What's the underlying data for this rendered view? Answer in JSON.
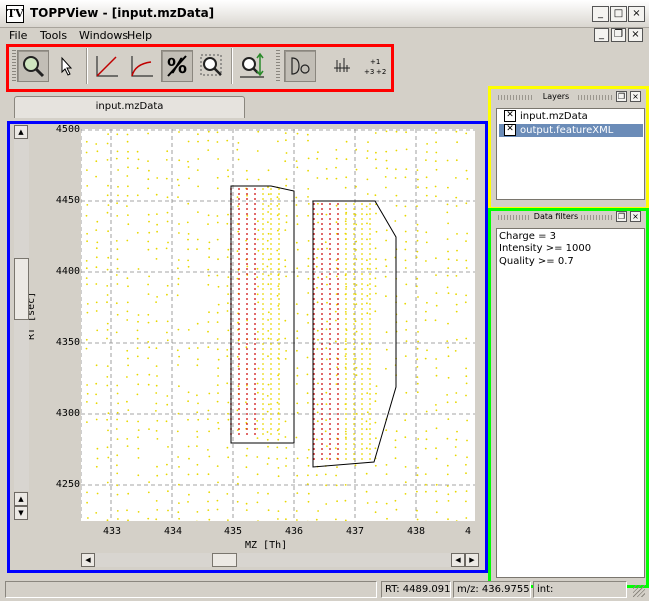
{
  "window": {
    "title": "TOPPView - [input.mzData]",
    "app_icon_glyph": "TV",
    "controls": [
      "_",
      "□",
      "×"
    ],
    "mdi_controls": [
      "_",
      "❐",
      "×"
    ]
  },
  "menu": [
    "File",
    "Tools",
    "Windows",
    "Help"
  ],
  "toolbar": {
    "tools": [
      {
        "icon": "zoom-mode-icon",
        "pressed": true
      },
      {
        "icon": "select-arrow-icon",
        "pressed": false
      },
      {
        "icon": "linear-intensity-icon",
        "pressed": false
      },
      {
        "icon": "log-intensity-icon",
        "pressed": false
      },
      {
        "icon": "percentage-intensity-icon",
        "pressed": true
      },
      {
        "icon": "reset-zoom-icon",
        "pressed": false
      },
      {
        "icon": "zoom-scale-icon",
        "pressed": false
      },
      {
        "icon": "projections-icon",
        "pressed": true
      },
      {
        "icon": "show-peaks-icon",
        "pressed": false
      },
      {
        "icon": "charge-states-icon",
        "pressed": false
      }
    ],
    "charge_labels": [
      "+1",
      "+3",
      "+2"
    ]
  },
  "tab": {
    "label": "input.mzData"
  },
  "plot": {
    "y_ticks": [
      "4500",
      "4450",
      "4400",
      "4350",
      "4300",
      "4250"
    ],
    "x_ticks": [
      "433",
      "434",
      "435",
      "436",
      "437",
      "438",
      "4"
    ],
    "xlabel": "MZ [Th]",
    "ylabel": "RT [sec]",
    "point_color": "#e8d800",
    "feature_color": "#cc0000"
  },
  "layers": {
    "title": "Layers",
    "items": [
      {
        "label": "input.mzData",
        "checked": true,
        "selected": false
      },
      {
        "label": "output.featureXML",
        "checked": true,
        "selected": true
      }
    ]
  },
  "filters": {
    "title": "Data filters",
    "items": [
      "Charge = 3",
      "Intensity >= 1000",
      "Quality >= 0.7"
    ]
  },
  "status": {
    "rt": "RT: 4489.091",
    "mz": "m/z: 436.9755",
    "extra": "int:"
  },
  "accents": {
    "toolbar_box": "#ff0000",
    "view_box": "#0000ff",
    "layers_box": "#ffff00",
    "filters_box": "#00ff00"
  }
}
